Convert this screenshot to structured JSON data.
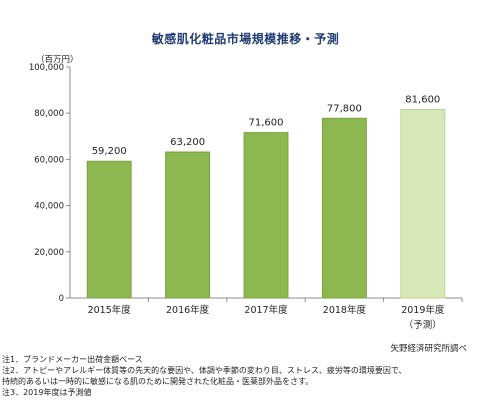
{
  "chart_data": {
    "type": "bar",
    "title": "敏感肌化粧品市場規模推移・予測",
    "unit_label": "（百万円）",
    "categories": [
      "2015年度",
      "2016年度",
      "2017年度",
      "2018年度",
      "2019年度"
    ],
    "category_sublabels": [
      "",
      "",
      "",
      "",
      "（予測）"
    ],
    "values": [
      59200,
      63200,
      71600,
      77800,
      81600
    ],
    "value_labels": [
      "59,200",
      "63,200",
      "71,600",
      "77,800",
      "81,600"
    ],
    "forecast_index": 4,
    "ylim": [
      0,
      100000
    ],
    "yticks": [
      0,
      20000,
      40000,
      60000,
      80000,
      100000
    ],
    "ytick_labels": [
      "0",
      "20,000",
      "40,000",
      "60,000",
      "80,000",
      "100,000"
    ],
    "grid": false,
    "colors": {
      "bar": "#8db74f",
      "bar_stroke": "#7aa340",
      "forecast_bar": "#d6e8b8",
      "forecast_stroke": "#b9d48f",
      "axis": "#8c8c8c",
      "title": "#1f3c73"
    }
  },
  "source": "矢野経済研究所調べ",
  "notes": [
    "注1．ブランドメーカー出荷金額ベース",
    "注2．アトピーやアレルギー体質等の先天的な要因や、体調や季節の変わり目、ストレス、疲労等の環境要因で、",
    "持続的あるいは一時的に敏感になる肌のために開発された化粧品・医薬部外品をさす。",
    "注3．2019年度は予測値"
  ]
}
